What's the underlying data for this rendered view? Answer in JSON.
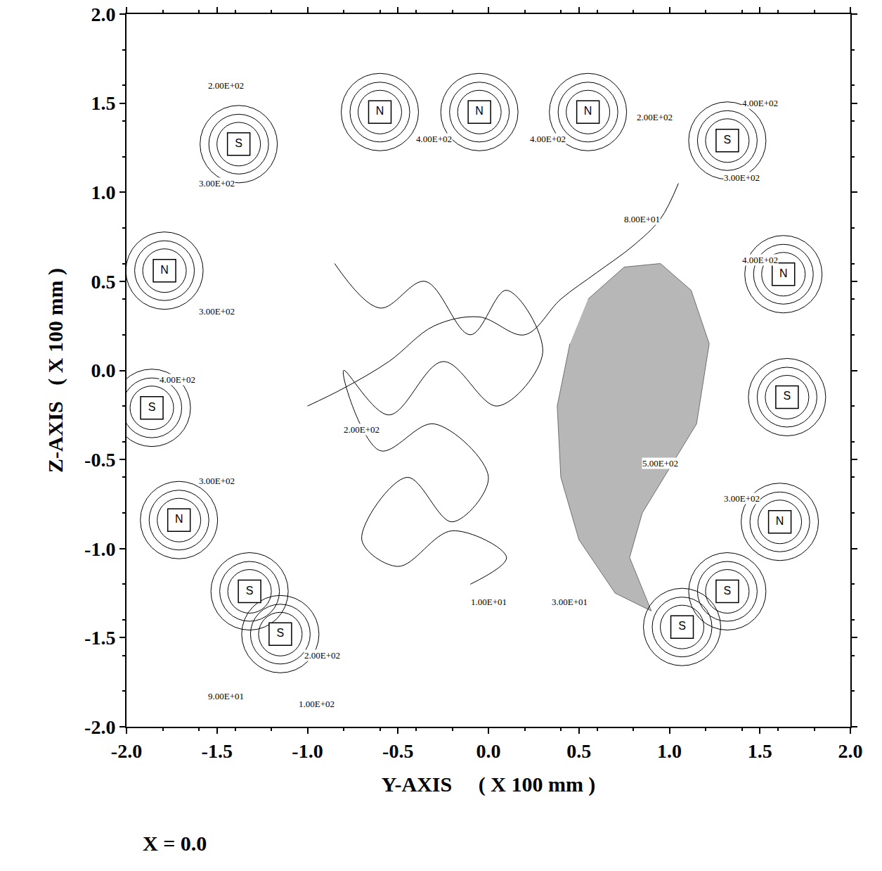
{
  "chart_data": {
    "type": "scatter",
    "xlabel": "Y-AXIS     ( X 100 mm )",
    "ylabel": "Z-AXIS   ( X 100 mm )",
    "note": "X = 0.0",
    "xlim": [
      -2.0,
      2.0
    ],
    "ylim": [
      -2.0,
      2.0
    ],
    "xticks": [
      {
        "value": -2.0,
        "label": "-2.0"
      },
      {
        "value": -1.5,
        "label": "-1.5"
      },
      {
        "value": -1.0,
        "label": "-1.0"
      },
      {
        "value": -0.5,
        "label": "-0.5"
      },
      {
        "value": 0.0,
        "label": "0.0"
      },
      {
        "value": 0.5,
        "label": "0.5"
      },
      {
        "value": 1.0,
        "label": "1.0"
      },
      {
        "value": 1.5,
        "label": "1.5"
      },
      {
        "value": 2.0,
        "label": "2.0"
      }
    ],
    "yticks": [
      {
        "value": -2.0,
        "label": "-2.0"
      },
      {
        "value": -1.5,
        "label": "-1.5"
      },
      {
        "value": -1.0,
        "label": "-1.0"
      },
      {
        "value": -0.5,
        "label": "-0.5"
      },
      {
        "value": 0.0,
        "label": "0.0"
      },
      {
        "value": 0.5,
        "label": "0.5"
      },
      {
        "value": 1.0,
        "label": "1.0"
      },
      {
        "value": 1.5,
        "label": "1.5"
      },
      {
        "value": 2.0,
        "label": "2.0"
      }
    ],
    "grid": false,
    "magnets": [
      {
        "x": -0.6,
        "y": 1.45,
        "label": "N"
      },
      {
        "x": -0.05,
        "y": 1.45,
        "label": "N"
      },
      {
        "x": 0.55,
        "y": 1.45,
        "label": "N"
      },
      {
        "x": -1.38,
        "y": 1.27,
        "label": "S"
      },
      {
        "x": 1.32,
        "y": 1.29,
        "label": "S"
      },
      {
        "x": -1.79,
        "y": 0.56,
        "label": "N"
      },
      {
        "x": -1.86,
        "y": -0.21,
        "label": "S"
      },
      {
        "x": -1.71,
        "y": -0.84,
        "label": "N"
      },
      {
        "x": -1.32,
        "y": -1.24,
        "label": "S"
      },
      {
        "x": -1.15,
        "y": -1.48,
        "label": "S"
      },
      {
        "x": 1.63,
        "y": 0.54,
        "label": "N"
      },
      {
        "x": 1.65,
        "y": -0.15,
        "label": "S"
      },
      {
        "x": 1.61,
        "y": -0.85,
        "label": "N"
      },
      {
        "x": 1.32,
        "y": -1.24,
        "label": "S"
      },
      {
        "x": 1.07,
        "y": -1.44,
        "label": "S"
      }
    ],
    "annotations": [
      {
        "x": -1.45,
        "y": 1.6,
        "text": "2.00E+02"
      },
      {
        "x": -1.5,
        "y": 1.05,
        "text": "3.00E+02"
      },
      {
        "x": -1.5,
        "y": 0.33,
        "text": "3.00E+02"
      },
      {
        "x": -1.72,
        "y": -0.05,
        "text": "4.00E+02"
      },
      {
        "x": -1.5,
        "y": -0.62,
        "text": "3.00E+02"
      },
      {
        "x": -0.7,
        "y": -0.33,
        "text": "2.00E+02"
      },
      {
        "x": -0.92,
        "y": -1.6,
        "text": "2.00E+02"
      },
      {
        "x": -1.45,
        "y": -1.83,
        "text": "9.00E+01"
      },
      {
        "x": -0.95,
        "y": -1.87,
        "text": "1.00E+02"
      },
      {
        "x": -0.3,
        "y": 1.3,
        "text": "4.00E+02"
      },
      {
        "x": 0.33,
        "y": 1.3,
        "text": "4.00E+02"
      },
      {
        "x": 0.92,
        "y": 1.42,
        "text": "2.00E+02"
      },
      {
        "x": 1.5,
        "y": 1.5,
        "text": "4.00E+02"
      },
      {
        "x": 1.4,
        "y": 1.08,
        "text": "3.00E+02"
      },
      {
        "x": 1.5,
        "y": 0.62,
        "text": "4.00E+02"
      },
      {
        "x": 0.85,
        "y": 0.85,
        "text": "8.00E+01"
      },
      {
        "x": 0.95,
        "y": -0.52,
        "text": "5.00E+02"
      },
      {
        "x": 1.4,
        "y": -0.72,
        "text": "3.00E+02"
      },
      {
        "x": 0.45,
        "y": -1.3,
        "text": "3.00E+01"
      },
      {
        "x": 0.0,
        "y": -1.3,
        "text": "1.00E+01"
      }
    ],
    "series": [
      {
        "type": "area",
        "color": "#9a9a9a",
        "x": [
          0.55,
          0.75,
          0.95,
          1.12,
          1.22,
          1.15,
          1.0,
          0.85,
          0.78,
          0.9,
          0.7,
          0.5,
          0.4,
          0.38,
          0.45
        ],
        "values": [
          0.4,
          0.58,
          0.6,
          0.45,
          0.15,
          -0.3,
          -0.55,
          -0.8,
          -1.05,
          -1.35,
          -1.25,
          -0.95,
          -0.6,
          -0.2,
          0.15
        ]
      },
      {
        "type": "line",
        "color": "#000000",
        "x": [
          -0.85,
          -0.6,
          -0.35,
          -0.1,
          0.1,
          0.3,
          0.05,
          -0.25,
          -0.55,
          -0.8,
          -0.6,
          -0.3,
          0.0,
          -0.2,
          -0.45,
          -0.7,
          -0.5,
          -0.2,
          0.1,
          -0.1
        ],
        "values": [
          0.6,
          0.35,
          0.5,
          0.2,
          0.45,
          0.1,
          -0.2,
          0.05,
          -0.25,
          0.0,
          -0.45,
          -0.3,
          -0.6,
          -0.85,
          -0.6,
          -0.95,
          -1.1,
          -0.9,
          -1.05,
          -1.2
        ]
      },
      {
        "type": "line",
        "color": "#000000",
        "x": [
          -1.0,
          -0.8,
          -0.55,
          -0.3,
          -0.05,
          0.2,
          0.4,
          0.6,
          0.8,
          0.95,
          1.05
        ],
        "values": [
          -0.2,
          -0.1,
          0.05,
          0.25,
          0.3,
          0.2,
          0.4,
          0.55,
          0.7,
          0.85,
          1.05
        ]
      }
    ]
  }
}
